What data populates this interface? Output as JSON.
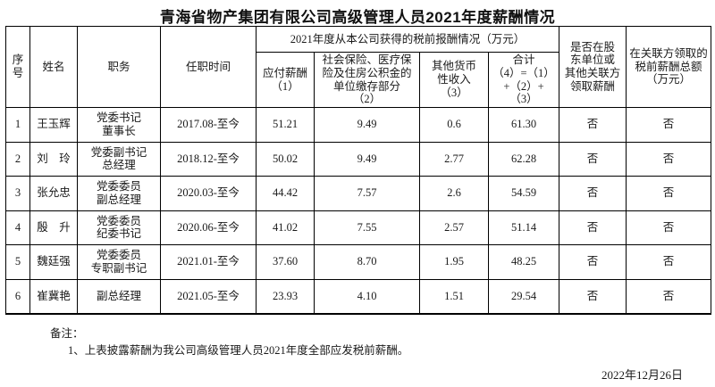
{
  "page": {
    "title": "青海省物产集团有限公司高级管理人员2021年度薪酬情况"
  },
  "table": {
    "headers": {
      "serial": "序\n号",
      "name": "姓名",
      "position": "职务",
      "tenure": "任职时间",
      "group_pretax": "2021年度从本公司获得的税前报酬情况（万元）",
      "payable": "应付薪酬\n（1）",
      "social": "社会保险、医疗保\n险及住房公积金的\n单位缴存部分\n（2）",
      "other": "其他货币\n性收入\n（3）",
      "total": "合计\n（4）=（1）\n+（2）+\n（3）",
      "related_flag": "是否在股\n东单位或\n其他关联方\n领取薪酬",
      "related_amount": "在关联方领取的\n税前薪酬总额\n（万元）"
    },
    "rows": [
      {
        "no": "1",
        "name": "王玉辉",
        "position": "党委书记\n董事长",
        "tenure": "2017.08-至今",
        "payable": "51.21",
        "social": "9.49",
        "other": "0.6",
        "total": "61.30",
        "flag": "否",
        "amount": "否"
      },
      {
        "no": "2",
        "name": "刘　玲",
        "position": "党委副书记\n总经理",
        "tenure": "2018.12-至今",
        "payable": "50.02",
        "social": "9.49",
        "other": "2.77",
        "total": "62.28",
        "flag": "否",
        "amount": "否"
      },
      {
        "no": "3",
        "name": "张允忠",
        "position": "党委委员\n副总经理",
        "tenure": "2020.03-至今",
        "payable": "44.42",
        "social": "7.57",
        "other": "2.6",
        "total": "54.59",
        "flag": "否",
        "amount": "否"
      },
      {
        "no": "4",
        "name": "殷　升",
        "position": "党委委员\n纪委书记",
        "tenure": "2020.06-至今",
        "payable": "41.02",
        "social": "7.55",
        "other": "2.57",
        "total": "51.14",
        "flag": "否",
        "amount": "否"
      },
      {
        "no": "5",
        "name": "魏廷强",
        "position": "党委委员\n专职副书记",
        "tenure": "2021.01-至今",
        "payable": "37.60",
        "social": "8.70",
        "other": "1.95",
        "total": "48.25",
        "flag": "否",
        "amount": "否"
      },
      {
        "no": "6",
        "name": "崔冀艳",
        "position": "副总经理",
        "tenure": "2021.05-至今",
        "payable": "23.93",
        "social": "4.10",
        "other": "1.51",
        "total": "29.54",
        "flag": "否",
        "amount": "否"
      }
    ]
  },
  "footer": {
    "remark_label": "备注：",
    "remark_1": "1、上表披露薪酬为我公司高级管理人员2021年度全部应发税前薪酬。",
    "date": "2022年12月26日"
  }
}
